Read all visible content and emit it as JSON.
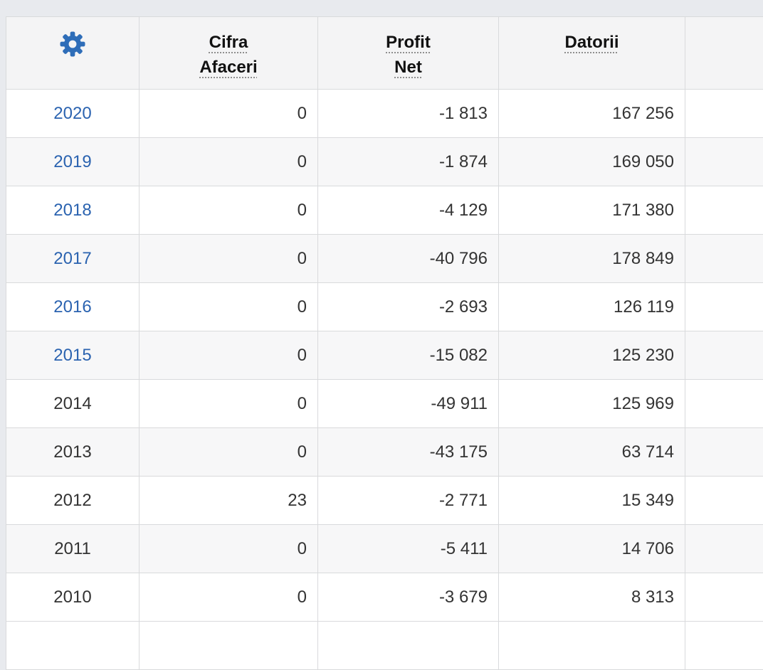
{
  "page": {
    "background_color": "#e8eaee"
  },
  "colors": {
    "link_blue": "#2b63b0",
    "gear_blue": "#2e6db8",
    "header_bg": "#f4f4f5",
    "stripe_bg": "#f7f7f8",
    "border": "#d9dadc",
    "text": "#333333"
  },
  "table": {
    "header": {
      "settings_icon": "gear",
      "columns": [
        {
          "label": "Cifra\nAfaceri"
        },
        {
          "label": "Profit\nNet"
        },
        {
          "label": "Datorii"
        },
        {
          "label": ""
        }
      ]
    },
    "rows": [
      {
        "year": "2020",
        "year_is_link": true,
        "cifra_afaceri": "0",
        "profit_net": "-1 813",
        "datorii": "167 256"
      },
      {
        "year": "2019",
        "year_is_link": true,
        "cifra_afaceri": "0",
        "profit_net": "-1 874",
        "datorii": "169 050"
      },
      {
        "year": "2018",
        "year_is_link": true,
        "cifra_afaceri": "0",
        "profit_net": "-4 129",
        "datorii": "171 380"
      },
      {
        "year": "2017",
        "year_is_link": true,
        "cifra_afaceri": "0",
        "profit_net": "-40 796",
        "datorii": "178 849"
      },
      {
        "year": "2016",
        "year_is_link": true,
        "cifra_afaceri": "0",
        "profit_net": "-2 693",
        "datorii": "126 119"
      },
      {
        "year": "2015",
        "year_is_link": true,
        "cifra_afaceri": "0",
        "profit_net": "-15 082",
        "datorii": "125 230"
      },
      {
        "year": "2014",
        "year_is_link": false,
        "cifra_afaceri": "0",
        "profit_net": "-49 911",
        "datorii": "125 969"
      },
      {
        "year": "2013",
        "year_is_link": false,
        "cifra_afaceri": "0",
        "profit_net": "-43 175",
        "datorii": "63 714"
      },
      {
        "year": "2012",
        "year_is_link": false,
        "cifra_afaceri": "23",
        "profit_net": "-2 771",
        "datorii": "15 349"
      },
      {
        "year": "2011",
        "year_is_link": false,
        "cifra_afaceri": "0",
        "profit_net": "-5 411",
        "datorii": "14 706"
      },
      {
        "year": "2010",
        "year_is_link": false,
        "cifra_afaceri": "0",
        "profit_net": "-3 679",
        "datorii": "8 313"
      }
    ]
  }
}
